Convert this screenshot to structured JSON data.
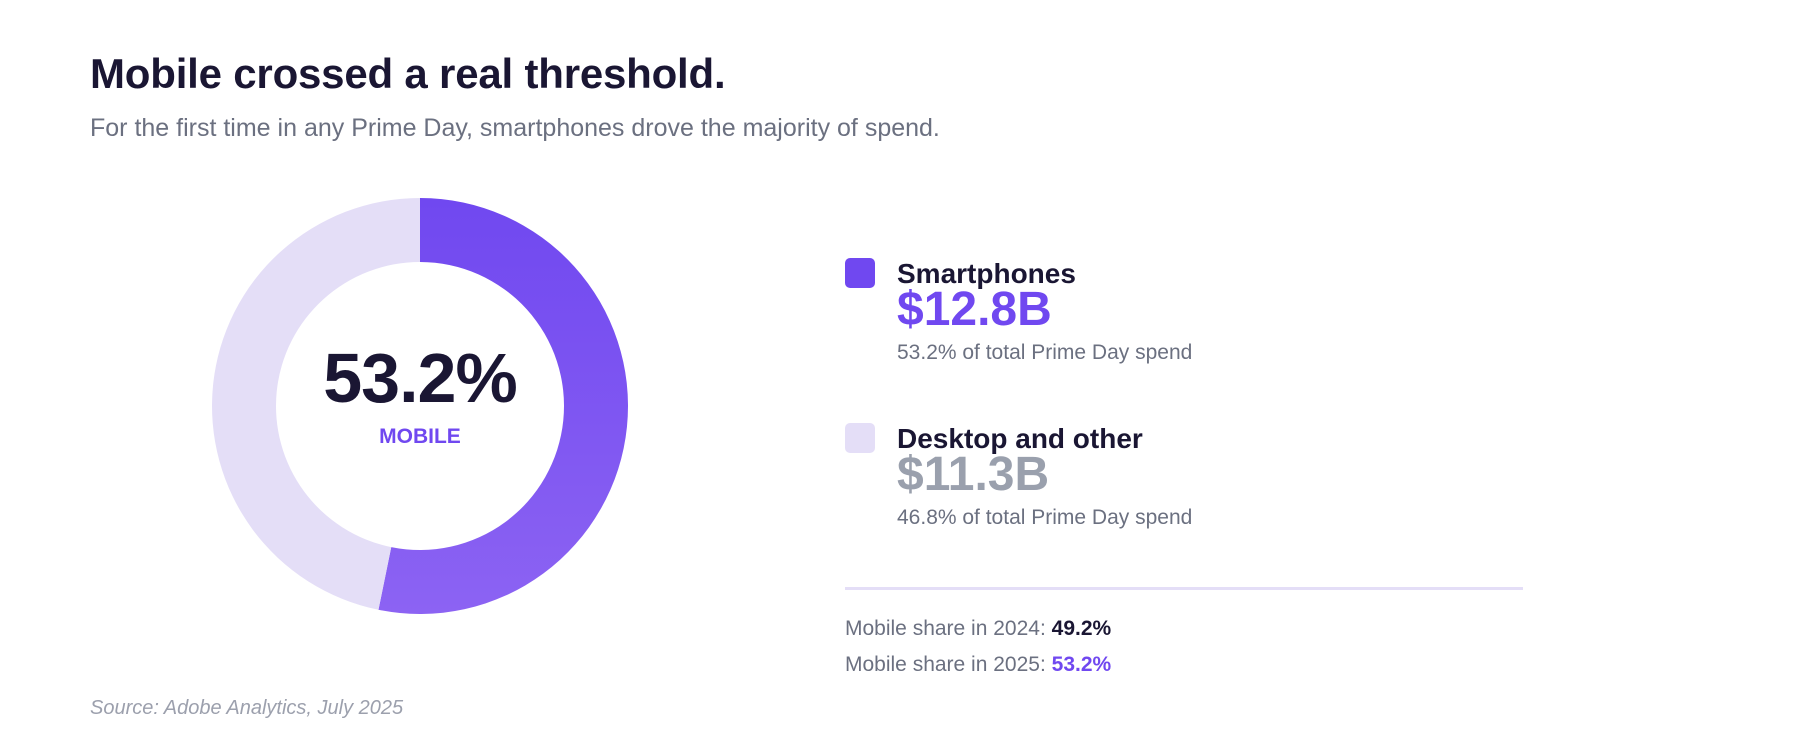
{
  "header": {
    "title": "Mobile crossed a real threshold.",
    "subtitle": "For the first time in any Prime Day, smartphones drove the majority of spend."
  },
  "chart_data": {
    "type": "pie",
    "title": "Mobile crossed a real threshold.",
    "subtitle": "For the first time in any Prime Day, smartphones drove the majority of spend.",
    "center_value": "53.2%",
    "center_label": "MOBILE",
    "slices": [
      {
        "name": "Smartphones",
        "value": 53.2,
        "spend": "$12.8B",
        "color": "#7048f0",
        "color_end": "#8c63f3"
      },
      {
        "name": "Desktop and other",
        "value": 46.8,
        "spend": "$11.3B",
        "color": "#e4def7"
      }
    ]
  },
  "legend": {
    "items": [
      {
        "name": "Smartphones",
        "value": "$12.8B",
        "note": "53.2% of total Prime Day spend",
        "swatch_color": "#7048f0",
        "value_color": "#7048f0"
      },
      {
        "name": "Desktop and other",
        "value": "$11.3B",
        "note": "46.8% of total Prime Day spend",
        "swatch_color": "#e4def7",
        "value_color": "#9aa0ad"
      }
    ]
  },
  "shares": [
    {
      "label": "Mobile share in 2024:",
      "value": "49.2%",
      "value_color": "#1a1633"
    },
    {
      "label": "Mobile share in 2025:",
      "value": "53.2%",
      "value_color": "#7048f0"
    }
  ],
  "source": "Source: Adobe Analytics, July 2025"
}
